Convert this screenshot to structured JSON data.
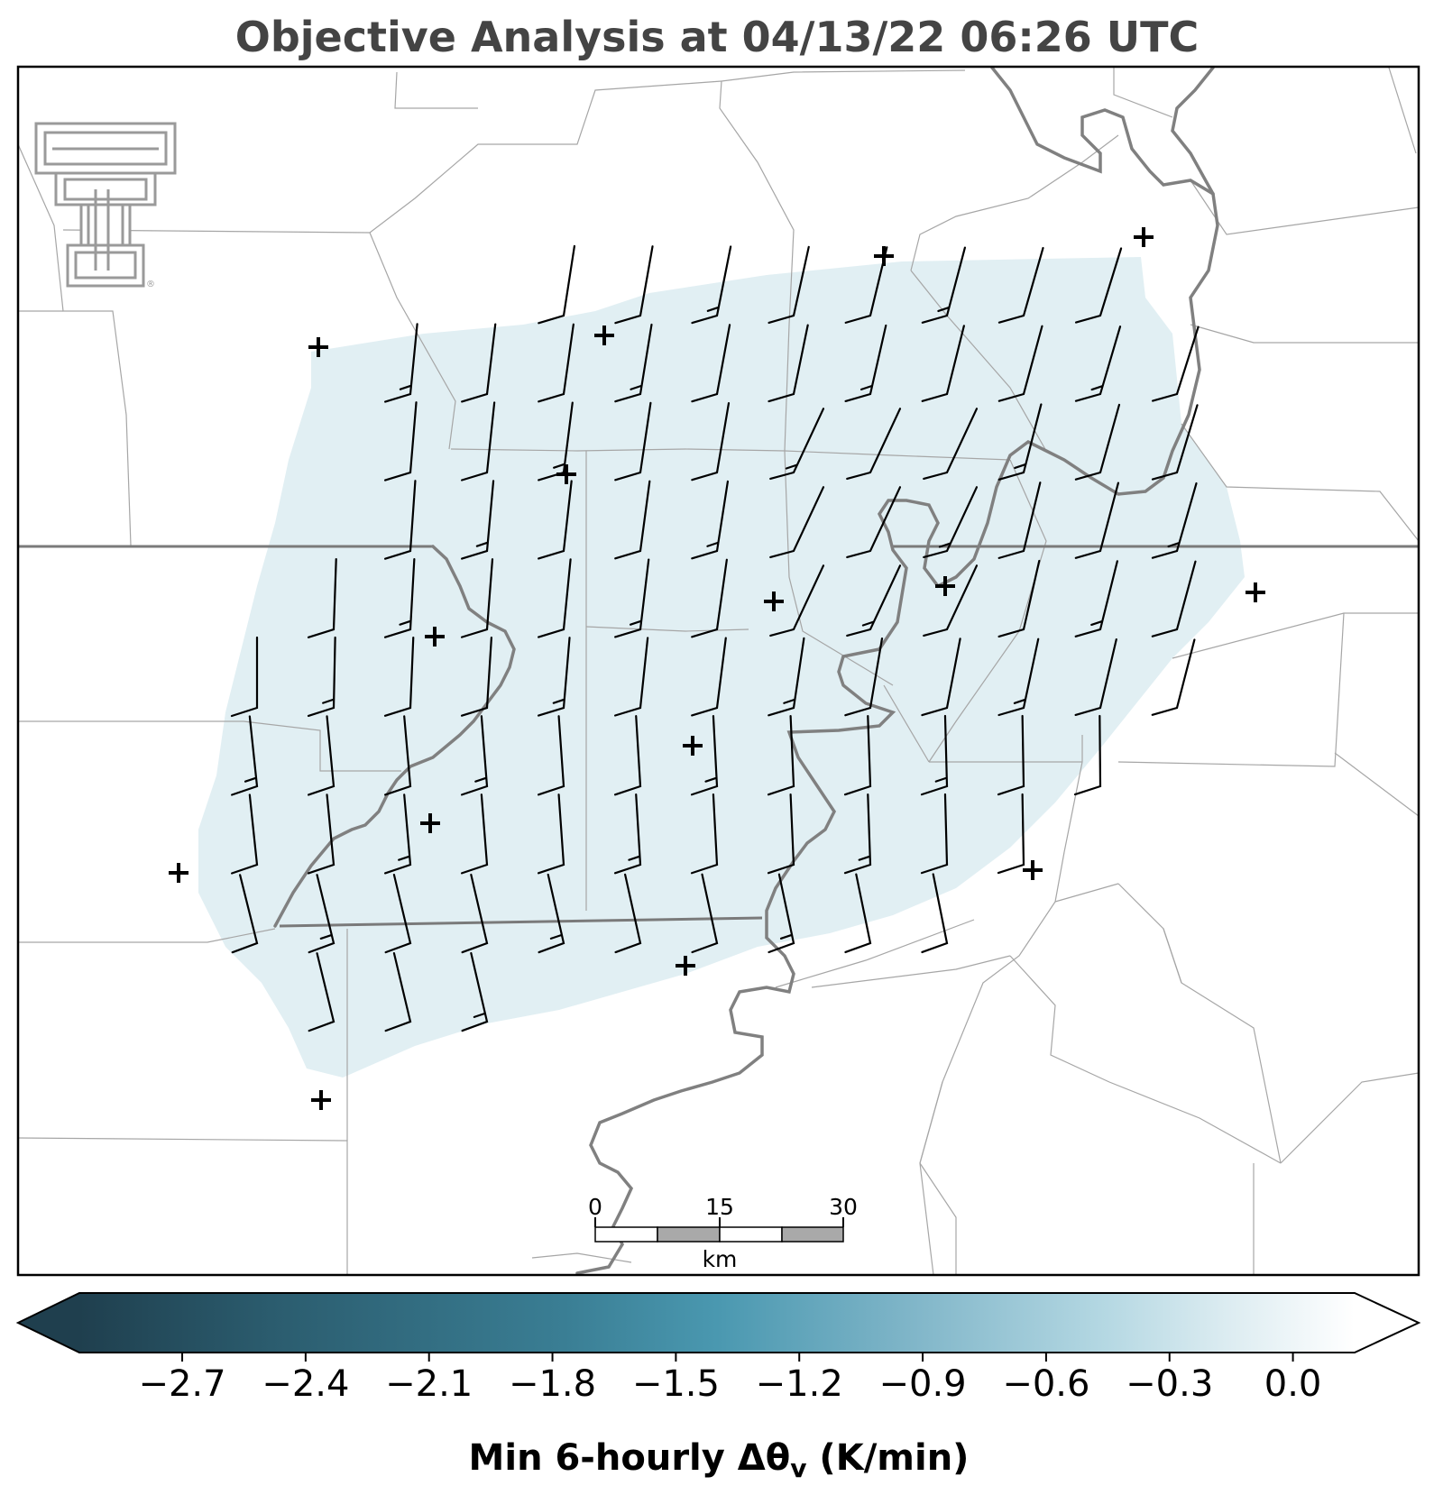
{
  "title": "Objective Analysis at 04/13/22 06:26 UTC",
  "logo": {
    "name": "texas-tech-double-t-logo",
    "mark": "®",
    "color": "#9a9a9a"
  },
  "colorbar": {
    "label_main": "Min 6-hourly Δθ",
    "label_sub": "v",
    "label_units": " (K/min)",
    "min": -2.95,
    "max": 0.15,
    "ticks": [
      "−2.7",
      "−2.4",
      "−2.1",
      "−1.8",
      "−1.5",
      "−1.2",
      "−0.9",
      "−0.6",
      "−0.3",
      "0.0"
    ],
    "tick_values": [
      -2.7,
      -2.4,
      -2.1,
      -1.8,
      -1.5,
      -1.2,
      -0.9,
      -0.6,
      -0.3,
      0.0
    ],
    "colors": [
      "#1f3f4e",
      "#2b5c6e",
      "#3a7e94",
      "#4a98b0",
      "#7fb5c8",
      "#b3d7e2",
      "#dcecf1",
      "#ffffff"
    ],
    "extend": "both"
  },
  "scale_bar": {
    "labels": [
      "0",
      "15",
      "30"
    ],
    "unit": "km"
  },
  "map": {
    "shaded_field_value": -0.15,
    "shaded_color": "#e1eff3",
    "station_count": 15
  }
}
